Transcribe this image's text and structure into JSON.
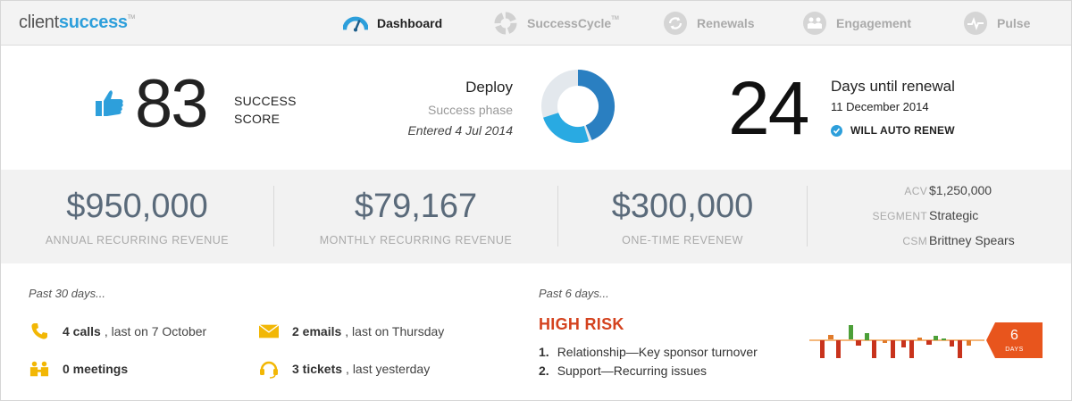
{
  "app": {
    "logo_part1": "client",
    "logo_part2": "success",
    "logo_tm": "TM"
  },
  "nav": [
    {
      "label": "Dashboard",
      "icon": "gauge-icon",
      "active": true
    },
    {
      "label": "SuccessCycle",
      "tm": "TM",
      "icon": "cycle-icon",
      "active": false
    },
    {
      "label": "Renewals",
      "icon": "refresh-icon",
      "active": false
    },
    {
      "label": "Engagement",
      "icon": "people-icon",
      "active": false
    },
    {
      "label": "Pulse",
      "icon": "pulse-icon",
      "active": false
    }
  ],
  "score": {
    "value": "83",
    "label_line1": "SUCCESS",
    "label_line2": "SCORE",
    "icon": "thumbs-up-icon"
  },
  "phase": {
    "name": "Deploy",
    "subtitle": "Success phase",
    "entered": "Entered 4 Jul 2014"
  },
  "renewal": {
    "days": "24",
    "title": "Days until renewal",
    "date": "11 December 2014",
    "auto_renew": "WILL AUTO RENEW"
  },
  "revenue": [
    {
      "value": "$950,000",
      "caption": "ANNUAL RECURRING REVENUE"
    },
    {
      "value": "$79,167",
      "caption": "MONTHLY RECURRING REVENUE"
    },
    {
      "value": "$300,000",
      "caption": "ONE-TIME REVENEW"
    }
  ],
  "meta": [
    {
      "key": "ACV",
      "value": "$1,250,000"
    },
    {
      "key": "SEGMENT",
      "value": "Strategic"
    },
    {
      "key": "CSM",
      "value": "Brittney Spears"
    }
  ],
  "activity": {
    "title": "Past 30 days...",
    "calls": {
      "bold": "4 calls",
      "rest": ", last on 7 October"
    },
    "meetings": {
      "bold": "0 meetings",
      "rest": ""
    },
    "emails": {
      "bold": "2 emails",
      "rest": ", last on Thursday"
    },
    "tickets": {
      "bold": "3 tickets",
      "rest": ", last yesterday"
    }
  },
  "risk": {
    "title": "Past 6 days...",
    "level": "HIGH RISK",
    "items": [
      {
        "num": "1.",
        "text": "Relationship—Key sponsor turnover"
      },
      {
        "num": "2.",
        "text": "Support—Recurring issues"
      }
    ],
    "days_value": "6",
    "days_label": "DAYS"
  },
  "colors": {
    "accent": "#2d9fdb",
    "risk": "#d4421e",
    "flag": "#e8551d",
    "yellow": "#f2b705",
    "donut_dark": "#2a7fc1",
    "donut_light": "#29aae2",
    "donut_track": "#e3e8ed"
  }
}
